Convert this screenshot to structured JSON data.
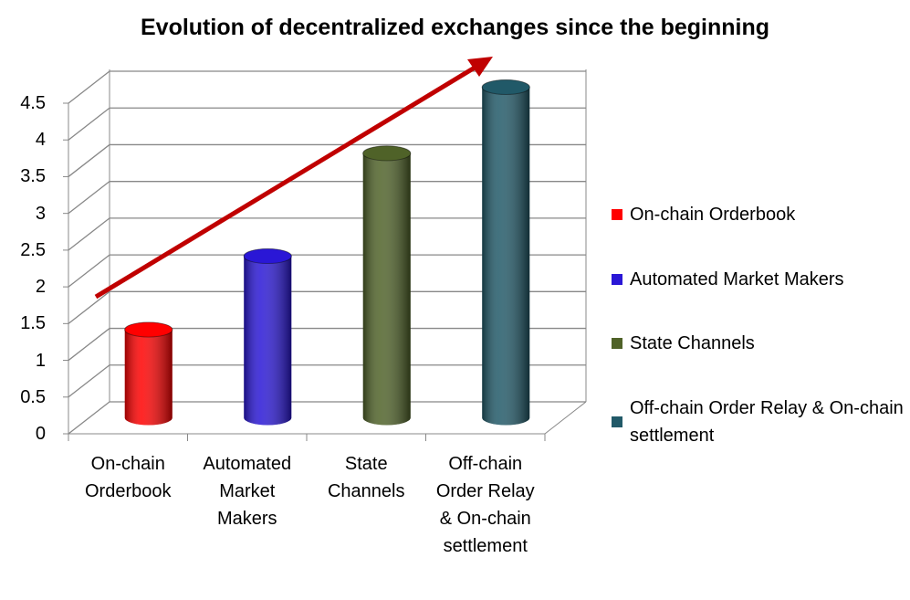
{
  "chart_data": {
    "type": "bar",
    "title": "Evolution of decentralized exchanges since the beginning",
    "categories": [
      "On-chain Orderbook",
      "Automated Market Makers",
      "State Channels",
      "Off-chain Order Relay & On-chain settlement"
    ],
    "series": [
      {
        "name": "On-chain Orderbook",
        "color": "#ff0000",
        "values": [
          1.2,
          null,
          null,
          null
        ]
      },
      {
        "name": "Automated Market Makers",
        "color": "#2a17d6",
        "values": [
          null,
          2.2,
          null,
          null
        ]
      },
      {
        "name": "State Channels",
        "color": "#4f6228",
        "values": [
          null,
          null,
          3.6,
          null
        ]
      },
      {
        "name": "Off-chain Order Relay & On-chain settlement",
        "color": "#215968",
        "values": [
          null,
          null,
          null,
          4.5
        ]
      }
    ],
    "ylim": [
      0,
      4.5
    ],
    "yticks": [
      0,
      0.5,
      1,
      1.5,
      2,
      2.5,
      3,
      3.5,
      4,
      4.5
    ],
    "grid": true
  }
}
